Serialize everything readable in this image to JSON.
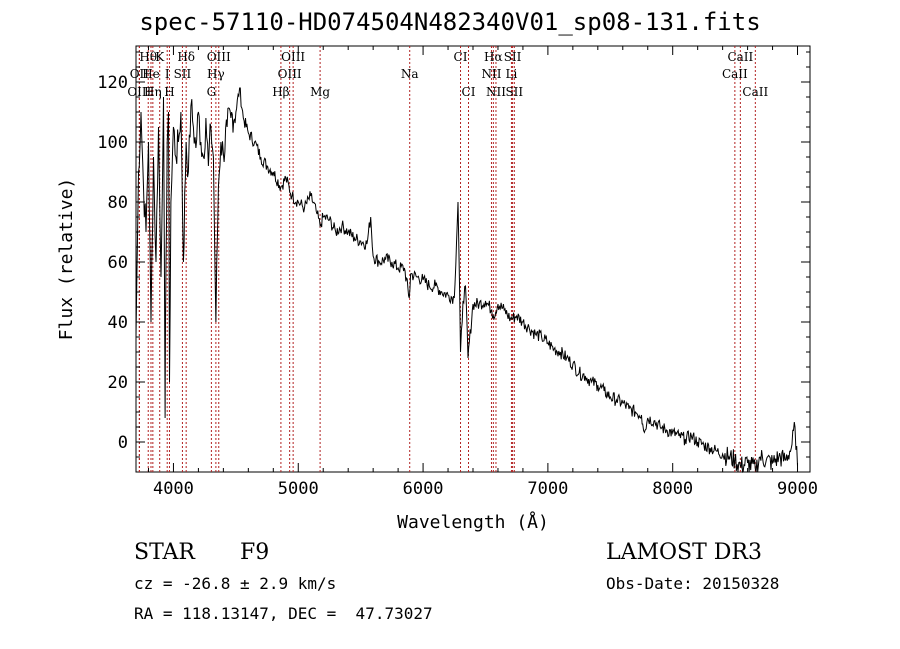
{
  "page": {
    "title": "spec-57110-HD074504N482340V01_sp08-131.fits",
    "class_label": "STAR",
    "subclass": "F9",
    "survey": "LAMOST DR3",
    "cz": "cz = -26.8 ± 2.9 km/s",
    "obs_date": "Obs-Date: 20150328",
    "coords": "RA = 118.13147, DEC =  47.73027"
  },
  "chart_data": {
    "type": "line",
    "title": "spec-57110-HD074504N482340V01_sp08-131.fits",
    "xlabel": "Wavelength (Å)",
    "ylabel": "Flux (relative)",
    "xlim": [
      3700,
      9100
    ],
    "ylim": [
      -10,
      132
    ],
    "grid": false,
    "x_ticks": [
      4000,
      5000,
      6000,
      7000,
      8000,
      9000
    ],
    "y_ticks": [
      0,
      20,
      40,
      60,
      80,
      100,
      120
    ],
    "series": [
      {
        "name": "spectrum",
        "x": [
          3700,
          3720,
          3740,
          3760,
          3780,
          3800,
          3820,
          3840,
          3860,
          3880,
          3900,
          3920,
          3933,
          3940,
          3950,
          3960,
          3968,
          3980,
          4000,
          4020,
          4040,
          4060,
          4080,
          4101,
          4120,
          4140,
          4160,
          4180,
          4200,
          4220,
          4240,
          4260,
          4280,
          4300,
          4320,
          4340,
          4360,
          4380,
          4400,
          4430,
          4460,
          4500,
          4530,
          4560,
          4600,
          4650,
          4700,
          4750,
          4800,
          4861,
          4900,
          4950,
          5000,
          5050,
          5100,
          5150,
          5175,
          5200,
          5250,
          5300,
          5350,
          5400,
          5450,
          5500,
          5550,
          5580,
          5600,
          5650,
          5700,
          5750,
          5800,
          5850,
          5890,
          5900,
          5950,
          6000,
          6050,
          6100,
          6150,
          6200,
          6250,
          6280,
          6300,
          6320,
          6340,
          6360,
          6400,
          6450,
          6500,
          6550,
          6563,
          6600,
          6650,
          6700,
          6750,
          6800,
          6850,
          6900,
          6950,
          7000,
          7050,
          7100,
          7150,
          7200,
          7250,
          7300,
          7350,
          7400,
          7450,
          7500,
          7550,
          7600,
          7650,
          7700,
          7750,
          7760,
          7780,
          7800,
          7850,
          7900,
          7950,
          8000,
          8050,
          8100,
          8150,
          8200,
          8250,
          8300,
          8350,
          8400,
          8450,
          8498,
          8542,
          8600,
          8662,
          8700,
          8750,
          8800,
          8850,
          8900,
          8950,
          8980,
          9000
        ],
        "values": [
          35,
          90,
          110,
          85,
          70,
          100,
          40,
          95,
          60,
          105,
          55,
          115,
          8,
          60,
          100,
          110,
          20,
          80,
          105,
          95,
          100,
          110,
          60,
          100,
          90,
          112,
          105,
          98,
          110,
          100,
          95,
          108,
          92,
          105,
          95,
          40,
          85,
          100,
          96,
          105,
          108,
          110,
          118,
          108,
          103,
          100,
          95,
          92,
          90,
          85,
          88,
          82,
          80,
          78,
          82,
          76,
          72,
          75,
          74,
          70,
          72,
          70,
          68,
          67,
          66,
          75,
          62,
          60,
          61,
          60,
          58,
          58,
          48,
          56,
          55,
          54,
          52,
          52,
          50,
          49,
          48,
          80,
          30,
          47,
          52,
          28,
          46,
          46,
          47,
          44,
          42,
          46,
          44,
          41,
          42,
          40,
          38,
          36,
          35,
          33,
          31,
          30,
          28,
          26,
          23,
          22,
          20,
          19,
          17,
          15,
          14,
          13,
          11,
          10,
          9,
          6,
          4,
          8,
          7,
          5,
          4,
          3,
          2,
          1,
          2,
          0,
          -1,
          -2,
          -3,
          -4,
          -5,
          -6,
          -8,
          -7,
          -9,
          -5,
          -6,
          -7,
          -5,
          -6,
          -2,
          5,
          -8
        ]
      }
    ],
    "lines": [
      {
        "label": "Hθ",
        "x": 3798,
        "row": 0
      },
      {
        "label": "OII",
        "x": 3727,
        "row": 1
      },
      {
        "label": "OIII",
        "x": 3727,
        "row": 2
      },
      {
        "label": "He",
        "x": 3820,
        "row": 1
      },
      {
        "label": "Hη",
        "x": 3835,
        "row": 2
      },
      {
        "label": "K",
        "x": 3890,
        "row": 0
      },
      {
        "label": "SII",
        "x": 4072,
        "row": 1
      },
      {
        "label": "I",
        "x": 3950,
        "row": 1
      },
      {
        "label": "H",
        "x": 3968,
        "row": 2
      },
      {
        "label": "Hδ",
        "x": 4102,
        "row": 0
      },
      {
        "label": "OIII",
        "x": 4363,
        "row": 0
      },
      {
        "label": "Hγ",
        "x": 4340,
        "row": 1
      },
      {
        "label": "G",
        "x": 4304,
        "row": 2
      },
      {
        "label": "OIII",
        "x": 4959,
        "row": 0
      },
      {
        "label": "OIII",
        "x": 4931,
        "row": 1
      },
      {
        "label": "Hβ",
        "x": 4861,
        "row": 2
      },
      {
        "label": "Mg",
        "x": 5175,
        "row": 2
      },
      {
        "label": "Na",
        "x": 5893,
        "row": 1
      },
      {
        "label": "CI",
        "x": 6300,
        "row": 0
      },
      {
        "label": "CI",
        "x": 6364,
        "row": 2
      },
      {
        "label": "Hα",
        "x": 6563,
        "row": 0
      },
      {
        "label": "NII",
        "x": 6548,
        "row": 1
      },
      {
        "label": "NII",
        "x": 6584,
        "row": 2
      },
      {
        "label": "SII",
        "x": 6717,
        "row": 0
      },
      {
        "label": "Li",
        "x": 6708,
        "row": 1
      },
      {
        "label": "SII",
        "x": 6731,
        "row": 2
      },
      {
        "label": "CaII",
        "x": 8542,
        "row": 0
      },
      {
        "label": "CaII",
        "x": 8498,
        "row": 1
      },
      {
        "label": "CaII",
        "x": 8662,
        "row": 2
      }
    ],
    "line_color": "#b22222"
  }
}
